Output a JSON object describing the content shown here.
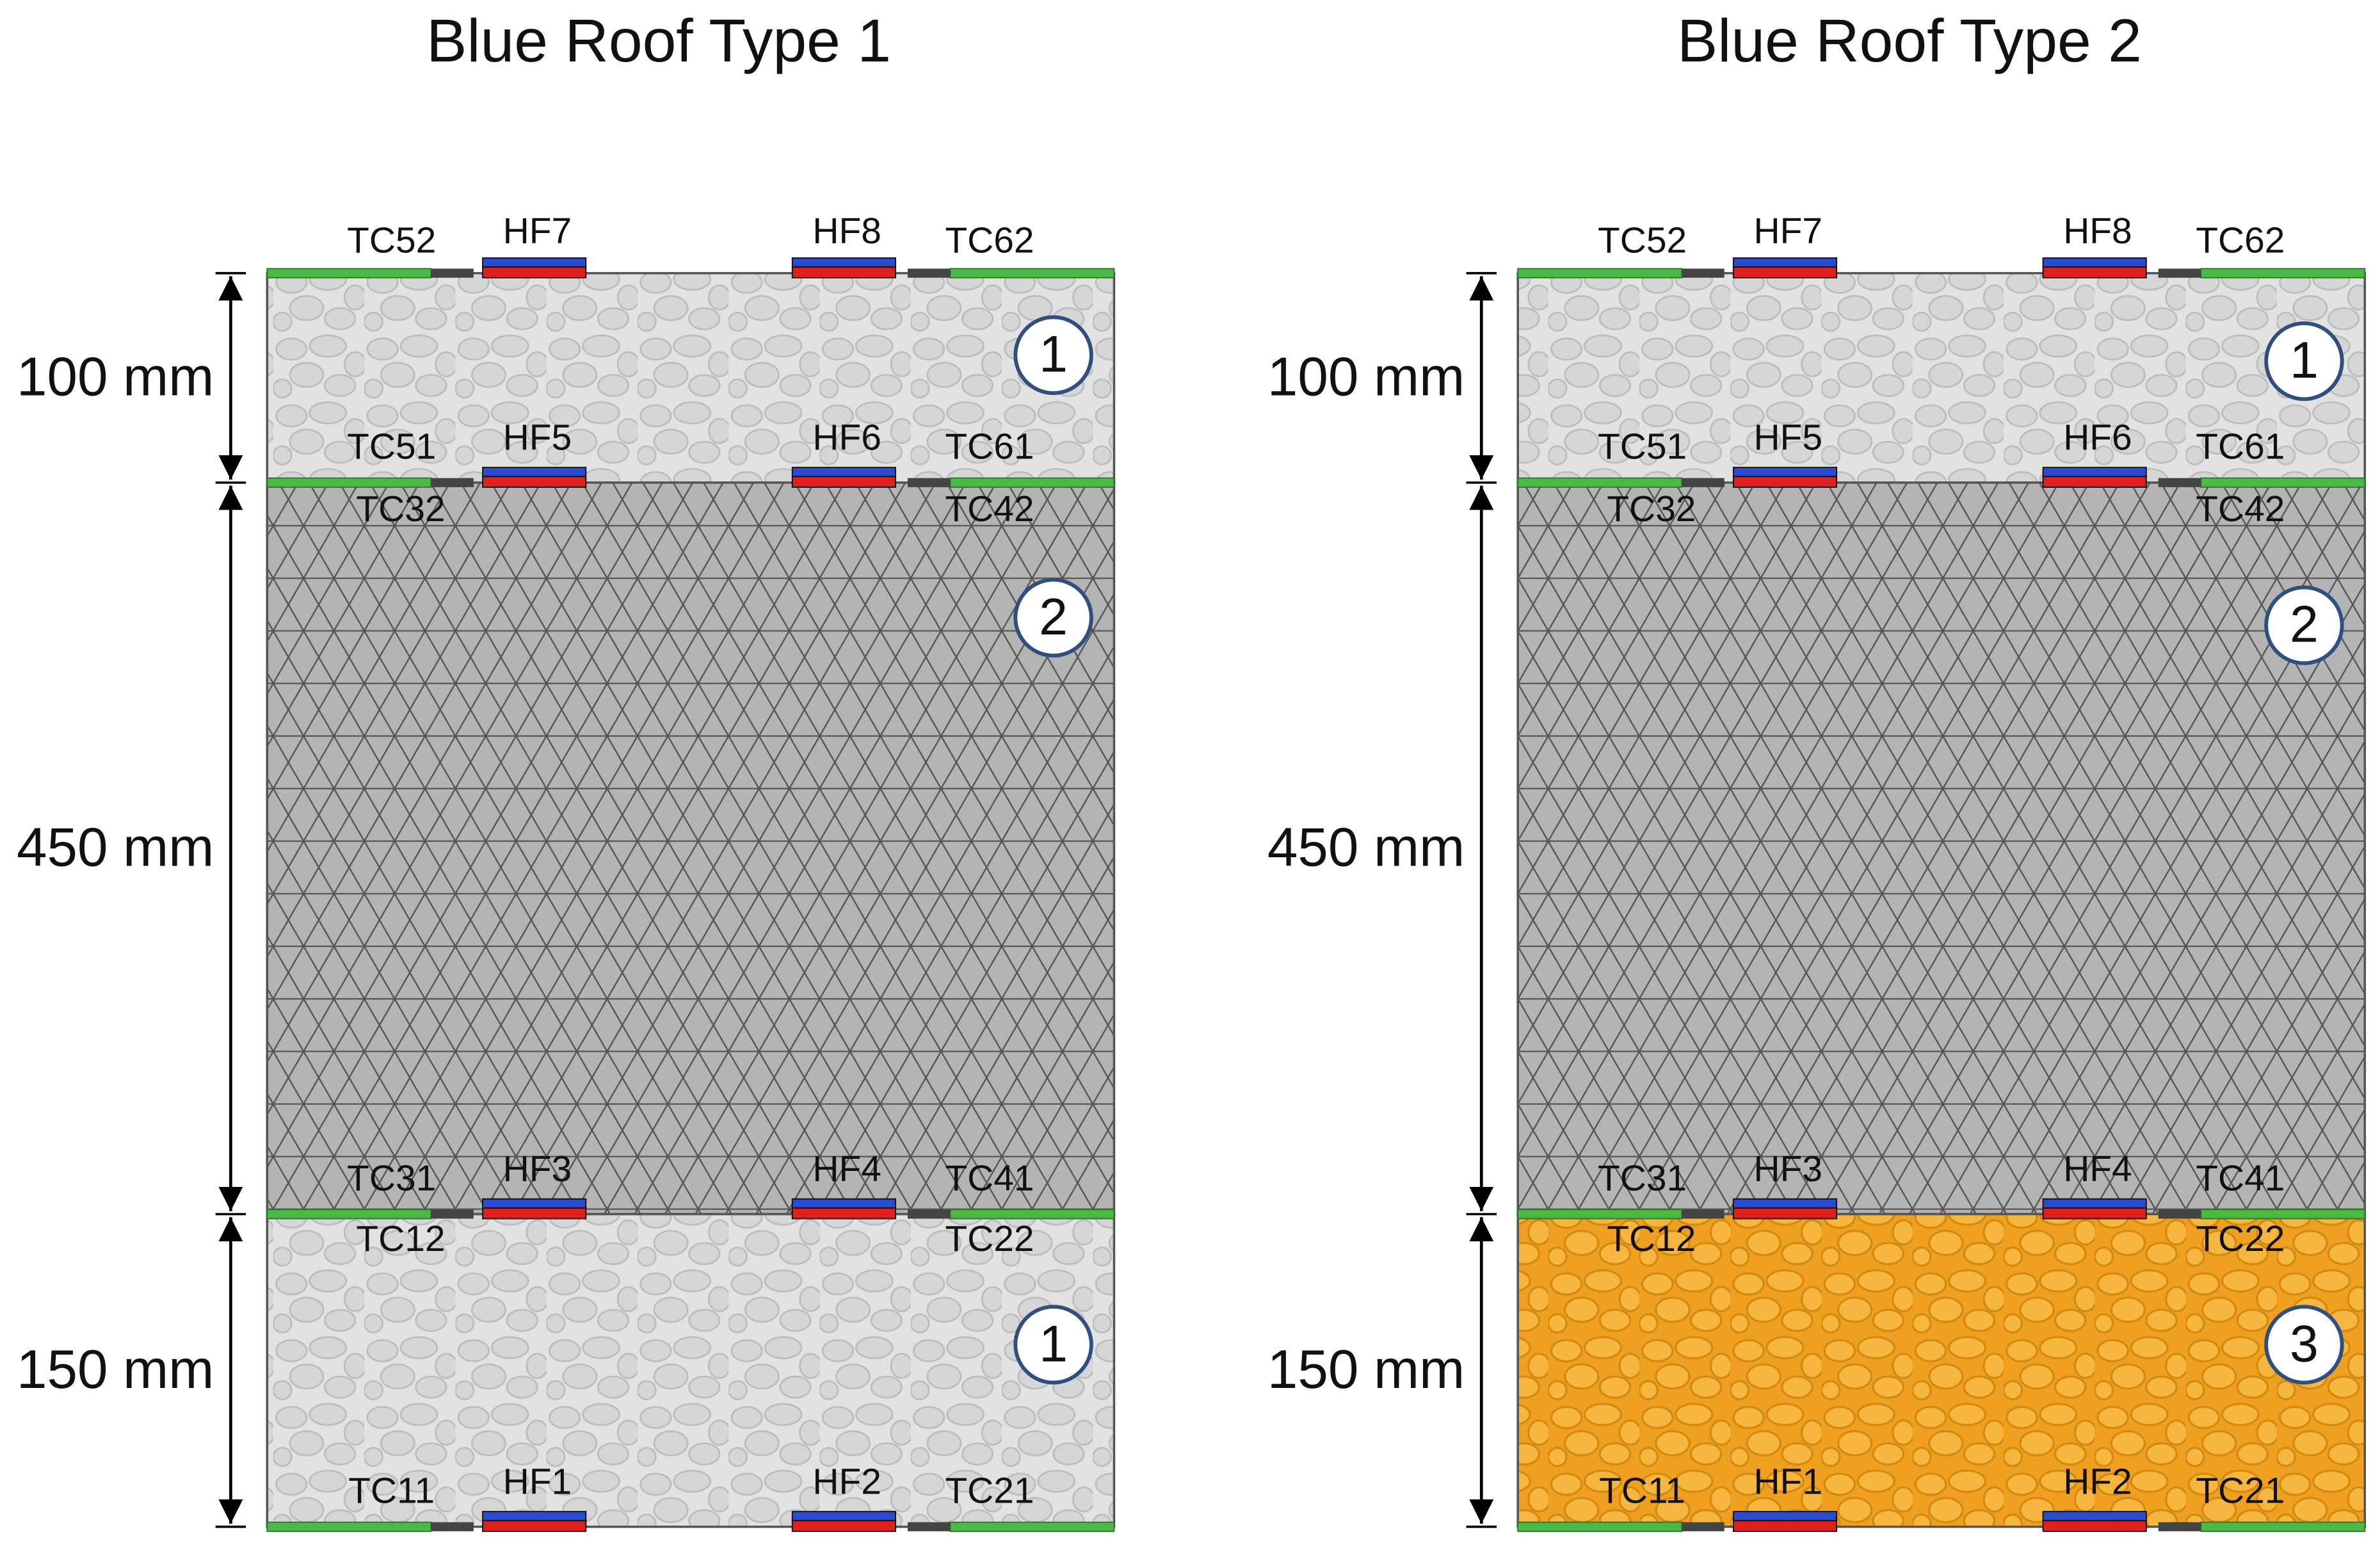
{
  "panels": [
    {
      "title": "Blue Roof Type 1",
      "layers": [
        {
          "thickness": "100 mm",
          "badge": "1"
        },
        {
          "thickness": "450 mm",
          "badge": "2"
        },
        {
          "thickness": "150 mm",
          "badge": "1"
        }
      ],
      "sensors": {
        "top": [
          "TC52",
          "HF7",
          "HF8",
          "TC62"
        ],
        "interface1_above": [
          "TC51",
          "HF5",
          "HF6",
          "TC61"
        ],
        "interface1_below": [
          "TC32",
          "TC42"
        ],
        "interface2_above": [
          "TC31",
          "HF3",
          "HF4",
          "TC41"
        ],
        "interface2_below": [
          "TC12",
          "TC22"
        ],
        "bottom": [
          "TC11",
          "HF1",
          "HF2",
          "TC21"
        ]
      }
    },
    {
      "title": "Blue Roof Type 2",
      "layers": [
        {
          "thickness": "100 mm",
          "badge": "1"
        },
        {
          "thickness": "450 mm",
          "badge": "2"
        },
        {
          "thickness": "150 mm",
          "badge": "3"
        }
      ],
      "sensors": {
        "top": [
          "TC52",
          "HF7",
          "HF8",
          "TC62"
        ],
        "interface1_above": [
          "TC51",
          "HF5",
          "HF6",
          "TC61"
        ],
        "interface1_below": [
          "TC32",
          "TC42"
        ],
        "interface2_above": [
          "TC31",
          "HF3",
          "HF4",
          "TC41"
        ],
        "interface2_below": [
          "TC12",
          "TC22"
        ],
        "bottom": [
          "TC11",
          "HF1",
          "HF2",
          "TC21"
        ]
      }
    }
  ]
}
